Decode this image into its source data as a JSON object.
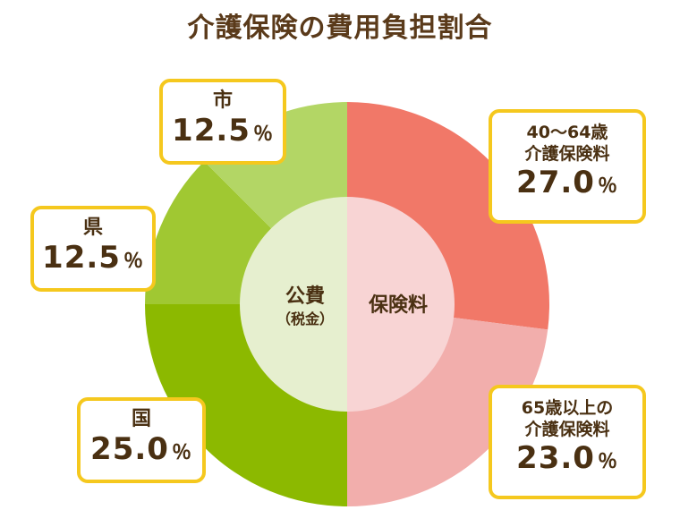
{
  "title": "介護保険の費用負担割合",
  "chart_data": {
    "type": "pie",
    "outer_ring": [
      {
        "label": "40〜64歳介護保険料",
        "value": 27.0,
        "color": "#f17868"
      },
      {
        "label": "65歳以上の介護保険料",
        "value": 23.0,
        "color": "#f2aeac"
      },
      {
        "label": "国",
        "value": 25.0,
        "color": "#8cb900"
      },
      {
        "label": "県",
        "value": 12.5,
        "color": "#a0c832"
      },
      {
        "label": "市",
        "value": 12.5,
        "color": "#b3d665"
      }
    ],
    "inner_ring": [
      {
        "label": "保険料",
        "value": 50.0,
        "color": "#f8d4d4"
      },
      {
        "label": "公費（税金）",
        "value": 50.0,
        "color": "#e6efcf"
      }
    ],
    "center_labels": {
      "public": "公費",
      "public_sub": "（税金）",
      "insurance": "保険料"
    }
  },
  "labels": {
    "ins40": {
      "line1": "40〜64歳",
      "line2": "介護保険料",
      "pct": "27.0",
      "unit": "％"
    },
    "ins65": {
      "line1": "65歳以上の",
      "line2": "介護保険料",
      "pct": "23.0",
      "unit": "％"
    },
    "national": {
      "name": "国",
      "pct": "25.0",
      "unit": "％"
    },
    "prefecture": {
      "name": "県",
      "pct": "12.5",
      "unit": "％"
    },
    "city": {
      "name": "市",
      "pct": "12.5",
      "unit": "％"
    }
  }
}
